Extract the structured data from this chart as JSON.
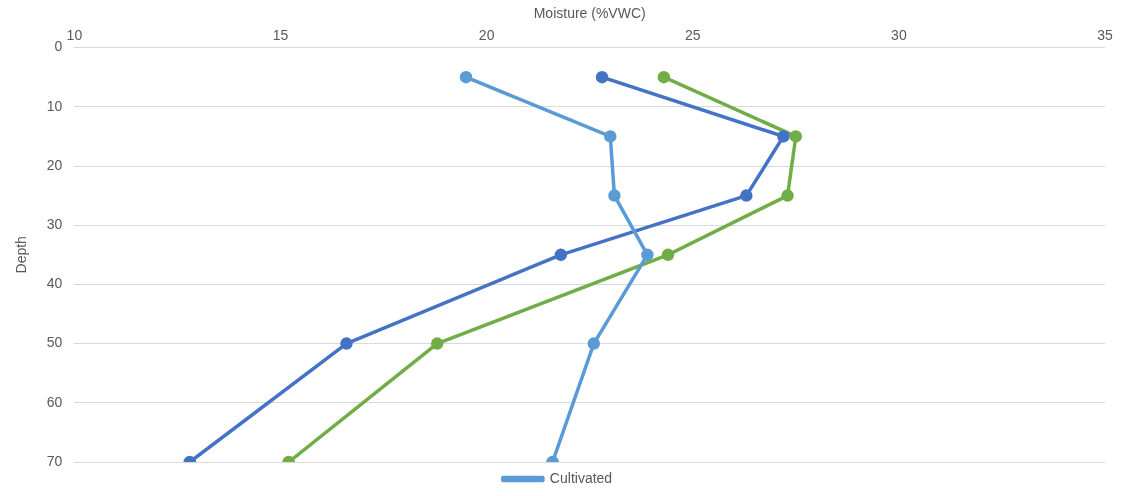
{
  "chart_data": {
    "type": "line",
    "xlabel": "Moisture (%VWC)",
    "ylabel": "Depth",
    "xlim": [
      10,
      35
    ],
    "xticks": [
      10,
      15,
      20,
      25,
      30,
      35
    ],
    "ylim": [
      70,
      0
    ],
    "yticks": [
      0,
      10,
      20,
      30,
      40,
      50,
      60,
      70
    ],
    "grid": "y",
    "legend": "bottom",
    "marker": "circle",
    "line_style": "solid",
    "series": [
      {
        "name": "Cultivated",
        "color": "#5b9bd5",
        "x": [
          19.5,
          23.0,
          23.1,
          23.9,
          22.6,
          21.6
        ],
        "values": [
          5,
          15,
          25,
          35,
          50,
          70
        ]
      },
      {
        "color": "#4472c4",
        "x": [
          22.8,
          27.2,
          26.3,
          21.8,
          16.6,
          12.8
        ],
        "values": [
          5,
          15,
          25,
          35,
          50,
          70
        ]
      },
      {
        "color": "#70ad47",
        "x": [
          24.3,
          27.5,
          27.3,
          24.4,
          18.8,
          15.2
        ],
        "values": [
          5,
          15,
          25,
          35,
          50,
          70
        ]
      }
    ]
  }
}
